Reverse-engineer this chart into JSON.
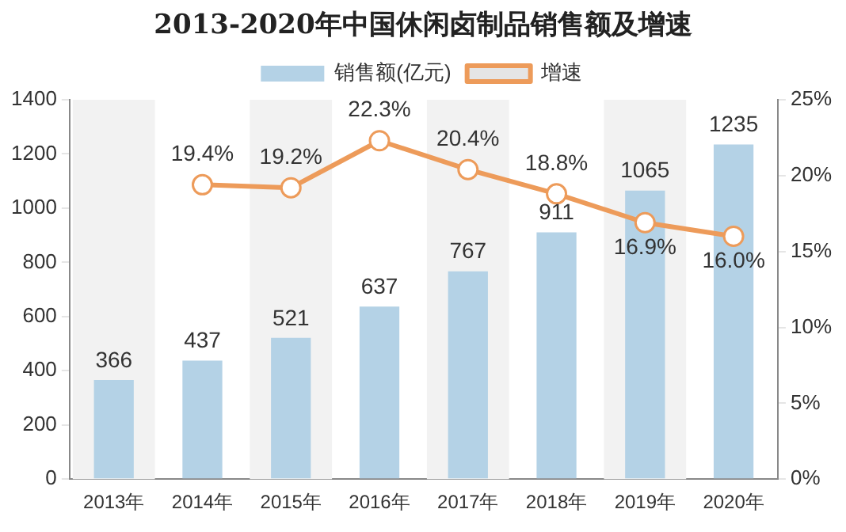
{
  "chart_data": {
    "type": "bar",
    "title": "2013-2020年中国休闲卤制品销售额及增速",
    "categories": [
      "2013年",
      "2014年",
      "2015年",
      "2016年",
      "2017年",
      "2018年",
      "2019年",
      "2020年"
    ],
    "series": [
      {
        "name": "销售额(亿元)",
        "color": "#b4d2e6",
        "values": [
          366,
          437,
          521,
          637,
          767,
          911,
          1065,
          1235
        ],
        "value_labels": [
          "366",
          "437",
          "521",
          "637",
          "767",
          "911",
          "1065",
          "1235"
        ]
      },
      {
        "name": "增速",
        "type": "line",
        "axis": "y2",
        "color": "#ed9b5a",
        "marker": "circle",
        "values": [
          null,
          19.4,
          19.2,
          22.3,
          20.4,
          18.8,
          16.9,
          16.0
        ],
        "value_labels": [
          null,
          "19.4%",
          "19.2%",
          "22.3%",
          "20.4%",
          "18.8%",
          "16.9%",
          "16.0%"
        ]
      }
    ],
    "ylim": [
      0,
      1400
    ],
    "yticks": [
      0,
      200,
      400,
      600,
      800,
      1000,
      1200,
      1400
    ],
    "y2lim": [
      0,
      25
    ],
    "y2ticks": [
      {
        "value": 0,
        "label": "0%"
      },
      {
        "value": 5,
        "label": "5%"
      },
      {
        "value": 10,
        "label": "10%"
      },
      {
        "value": 15,
        "label": "15%"
      },
      {
        "value": 20,
        "label": "20%"
      },
      {
        "value": 25,
        "label": "25%"
      }
    ],
    "bands": [
      {
        "axis": "x",
        "from": "2013年",
        "to": "2013年",
        "color": "#f2f2f2"
      },
      {
        "axis": "x",
        "from": "2015年",
        "to": "2015年",
        "color": "#f2f2f2"
      },
      {
        "axis": "x",
        "from": "2017年",
        "to": "2017年",
        "color": "#f2f2f2"
      },
      {
        "axis": "x",
        "from": "2019年",
        "to": "2019年",
        "color": "#f2f2f2"
      }
    ],
    "grid": false,
    "legend": "top"
  }
}
